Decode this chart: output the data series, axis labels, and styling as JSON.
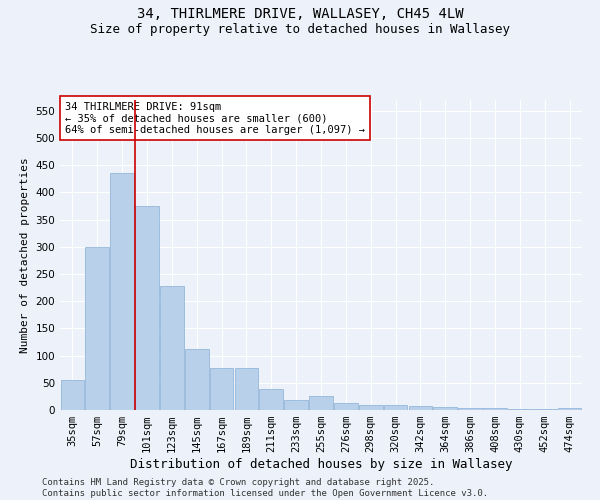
{
  "title": "34, THIRLMERE DRIVE, WALLASEY, CH45 4LW",
  "subtitle": "Size of property relative to detached houses in Wallasey",
  "xlabel": "Distribution of detached houses by size in Wallasey",
  "ylabel": "Number of detached properties",
  "categories": [
    "35sqm",
    "57sqm",
    "79sqm",
    "101sqm",
    "123sqm",
    "145sqm",
    "167sqm",
    "189sqm",
    "211sqm",
    "233sqm",
    "255sqm",
    "276sqm",
    "298sqm",
    "320sqm",
    "342sqm",
    "364sqm",
    "386sqm",
    "408sqm",
    "430sqm",
    "452sqm",
    "474sqm"
  ],
  "values": [
    55,
    300,
    435,
    375,
    228,
    113,
    78,
    78,
    38,
    18,
    25,
    13,
    10,
    10,
    8,
    5,
    3,
    3,
    2,
    1,
    3
  ],
  "bar_color": "#b8d0ea",
  "bar_edge_color": "#8aafd4",
  "vline_x": 2.5,
  "vline_color": "#cc0000",
  "annotation_text": "34 THIRLMERE DRIVE: 91sqm\n← 35% of detached houses are smaller (600)\n64% of semi-detached houses are larger (1,097) →",
  "annotation_box_facecolor": "#ffffff",
  "annotation_box_edgecolor": "#cc0000",
  "ylim": [
    0,
    570
  ],
  "yticks": [
    0,
    50,
    100,
    150,
    200,
    250,
    300,
    350,
    400,
    450,
    500,
    550
  ],
  "background_color": "#edf2fa",
  "grid_color": "#ffffff",
  "footer_text": "Contains HM Land Registry data © Crown copyright and database right 2025.\nContains public sector information licensed under the Open Government Licence v3.0.",
  "title_fontsize": 10,
  "subtitle_fontsize": 9,
  "xlabel_fontsize": 9,
  "ylabel_fontsize": 8,
  "tick_fontsize": 7.5,
  "annotation_fontsize": 7.5,
  "footer_fontsize": 6.5
}
